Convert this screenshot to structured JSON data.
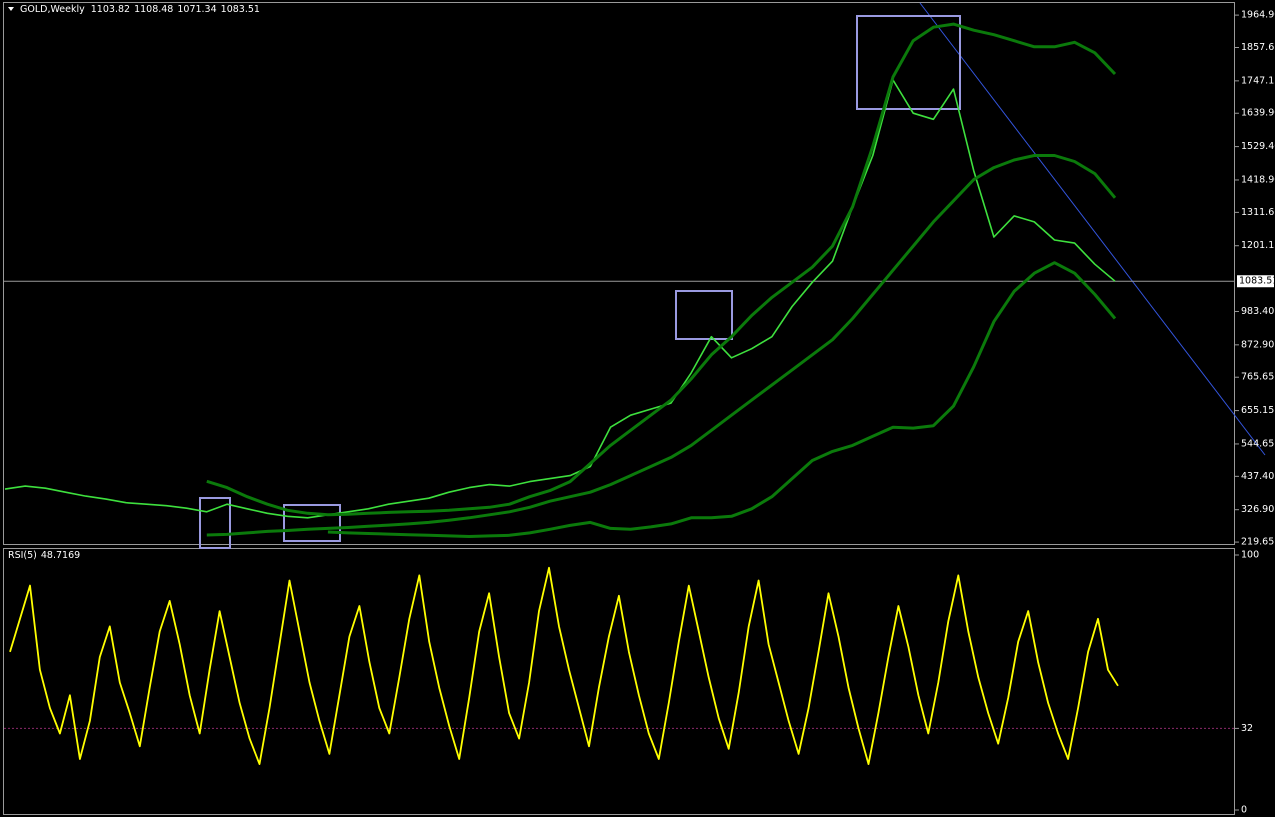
{
  "chart_data": [
    {
      "type": "line",
      "title": "GOLD,Weekly",
      "ohlc": [
        1103.82,
        1108.48,
        1071.34,
        1083.51
      ],
      "last_price": 1083.51,
      "ylim": [
        210,
        2005
      ],
      "yticks": [
        {
          "value": 1964.9,
          "label": "1964.90"
        },
        1857.65,
        1747.15,
        {
          "value": 1639.9,
          "label": "1639.90"
        },
        {
          "value": 1529.4,
          "label": "1529.40"
        },
        {
          "value": 1418.9,
          "label": "1418.90"
        },
        1311.65,
        1201.15,
        {
          "value": 983.4,
          "label": "983.40"
        },
        {
          "value": 872.9,
          "label": "872.90"
        },
        765.65,
        655.15,
        544.65,
        {
          "value": 437.4,
          "label": "437.40"
        },
        {
          "value": 326.9,
          "label": "326.90"
        },
        219.65
      ],
      "series": [
        {
          "color": "#3ee03e",
          "values": [
            395,
            405,
            398,
            385,
            372,
            362,
            350,
            345,
            340,
            332,
            320,
            345,
            330,
            315,
            305,
            300,
            310,
            320,
            330,
            345,
            355,
            365,
            385,
            400,
            410,
            405,
            420,
            430,
            440,
            470,
            600,
            640,
            660,
            680,
            780,
            900,
            830,
            860,
            900,
            1000,
            1080,
            1150,
            1330,
            1500,
            1750,
            1640,
            1620,
            1720,
            1450,
            1230,
            1300,
            1280,
            1220,
            1210,
            1140,
            1083.51
          ]
        },
        {
          "color": "#0b7a0b",
          "values": [
            null,
            null,
            null,
            null,
            null,
            null,
            null,
            null,
            null,
            null,
            421,
            400,
            370,
            345,
            325,
            315,
            310,
            312,
            315,
            318,
            320,
            322,
            325,
            330,
            335,
            345,
            370,
            390,
            420,
            480,
            540,
            590,
            640,
            690,
            760,
            840,
            900,
            970,
            1030,
            1080,
            1130,
            1200,
            1330,
            1530,
            1760,
            1880,
            1925,
            1935,
            1915,
            1900,
            1880,
            1860,
            1860,
            1875,
            1840,
            1770
          ]
        },
        {
          "color": "#0b7a0b",
          "values": [
            null,
            null,
            null,
            null,
            null,
            null,
            null,
            null,
            null,
            null,
            243,
            245,
            250,
            255,
            258,
            262,
            265,
            268,
            272,
            276,
            280,
            285,
            292,
            300,
            310,
            320,
            335,
            355,
            370,
            385,
            410,
            440,
            470,
            500,
            540,
            590,
            640,
            690,
            740,
            790,
            840,
            890,
            960,
            1040,
            1120,
            1200,
            1280,
            1350,
            1420,
            1460,
            1485,
            1500,
            1500,
            1480,
            1440,
            1360
          ]
        },
        {
          "color": "#0b7a0b",
          "values": [
            null,
            null,
            null,
            null,
            null,
            null,
            null,
            null,
            null,
            null,
            null,
            null,
            null,
            null,
            null,
            null,
            253,
            250,
            248,
            246,
            244,
            242,
            240,
            238,
            240,
            242,
            250,
            262,
            275,
            285,
            265,
            262,
            270,
            280,
            300,
            300,
            305,
            330,
            370,
            430,
            490,
            520,
            540,
            570,
            600,
            597,
            605,
            670,
            800,
            950,
            1050,
            1110,
            1145,
            1110,
            1040,
            960
          ]
        }
      ]
    },
    {
      "type": "line",
      "title": "RSI(5)",
      "last_value": 48.7169,
      "ylim": [
        0,
        100
      ],
      "yticks": [
        0,
        32,
        100
      ],
      "level": 32,
      "level_color": "#8b2a6b",
      "series": [
        {
          "color": "#ffff00",
          "values": [
            62,
            75,
            88,
            55,
            40,
            30,
            45,
            20,
            35,
            60,
            72,
            50,
            38,
            25,
            48,
            70,
            82,
            65,
            45,
            30,
            55,
            78,
            60,
            42,
            28,
            18,
            40,
            65,
            90,
            70,
            50,
            35,
            22,
            45,
            68,
            80,
            58,
            40,
            30,
            52,
            75,
            92,
            66,
            48,
            33,
            20,
            44,
            70,
            85,
            60,
            38,
            28,
            50,
            78,
            95,
            72,
            55,
            40,
            25,
            48,
            68,
            84,
            62,
            45,
            30,
            20,
            42,
            66,
            88,
            70,
            52,
            36,
            24,
            46,
            72,
            90,
            65,
            50,
            35,
            22,
            40,
            62,
            85,
            68,
            48,
            32,
            18,
            38,
            60,
            80,
            64,
            45,
            30,
            50,
            74,
            92,
            70,
            52,
            38,
            26,
            44,
            66,
            78,
            58,
            42,
            30,
            20,
            40,
            62,
            75,
            55,
            48.7169
          ]
        }
      ]
    }
  ]
}
